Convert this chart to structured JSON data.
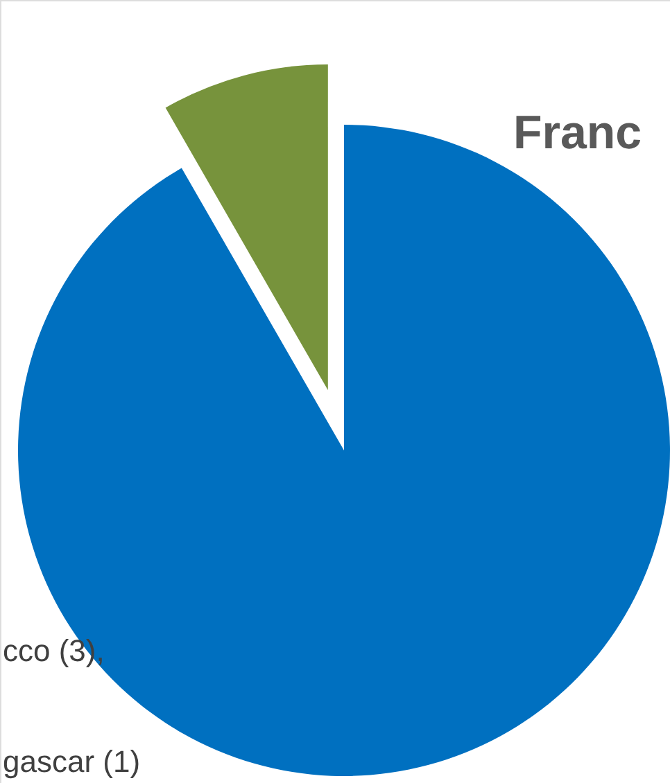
{
  "chart_data": {
    "type": "pie",
    "categories": [
      null,
      null
    ],
    "values": [
      91.7,
      8.3
    ],
    "colors": [
      "#0070c0",
      "#77933c"
    ],
    "annotations": [
      "Franc",
      "cco (3),",
      "gascar (1)"
    ]
  }
}
